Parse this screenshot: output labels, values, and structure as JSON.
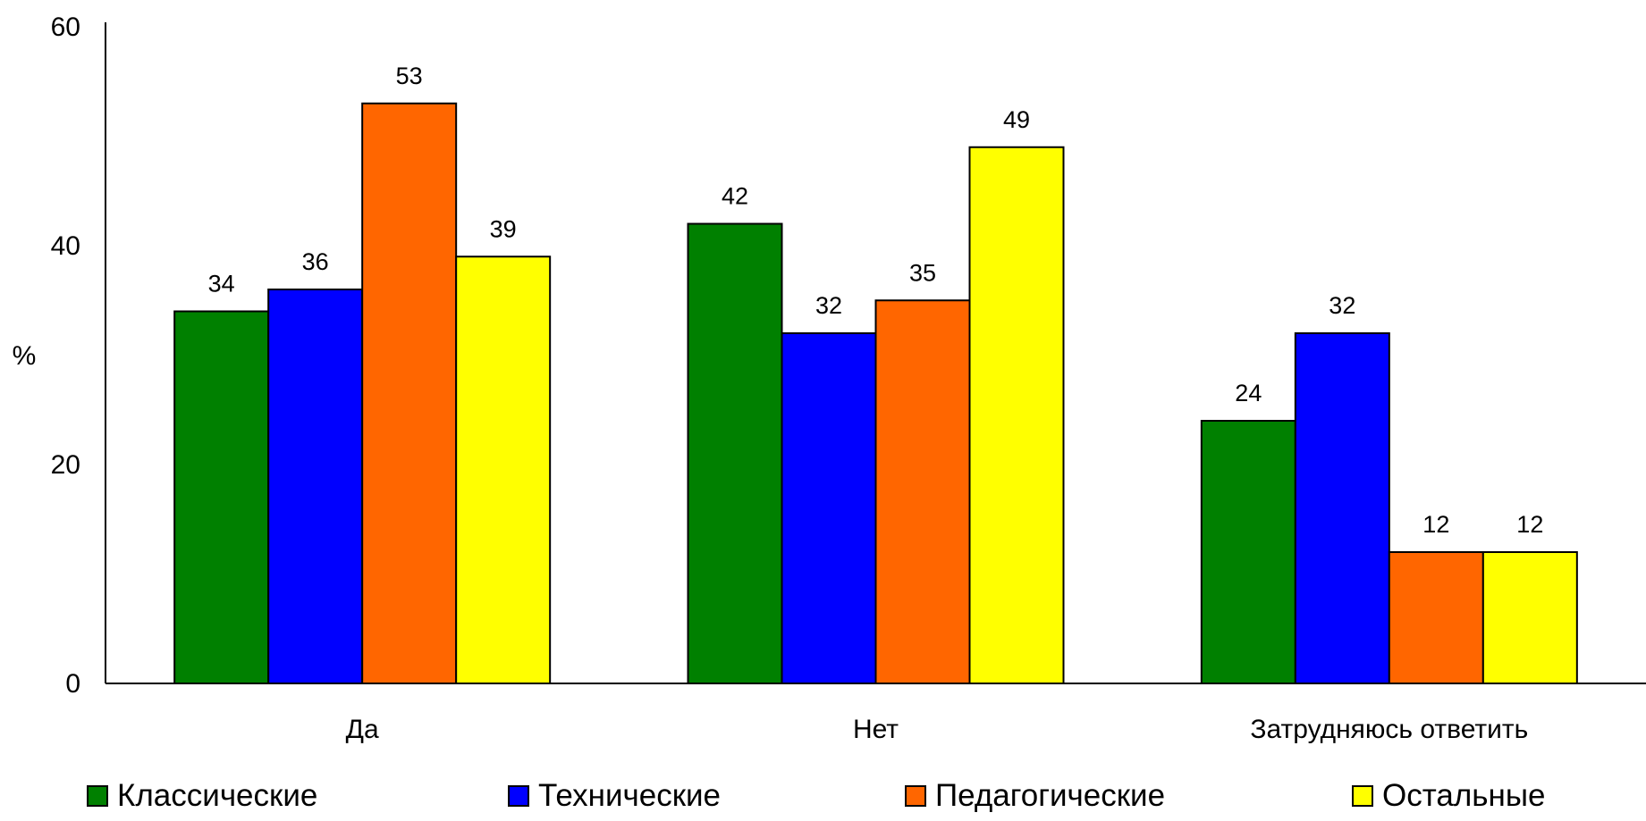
{
  "chart_data": {
    "type": "bar",
    "categories": [
      "Да",
      "Нет",
      "Затрудняюсь ответить"
    ],
    "series": [
      {
        "name": "Классические",
        "color": "#008000",
        "values": [
          34,
          42,
          24
        ]
      },
      {
        "name": "Технические",
        "color": "#0000ff",
        "values": [
          36,
          32,
          32
        ]
      },
      {
        "name": "Педагогические",
        "color": "#ff6600",
        "values": [
          53,
          35,
          12
        ]
      },
      {
        "name": "Остальные",
        "color": "#ffff00",
        "values": [
          39,
          49,
          12
        ]
      }
    ],
    "ylabel": "%",
    "xlabel": "",
    "ylim": [
      0,
      60
    ],
    "yticks": [
      0,
      20,
      40,
      60
    ],
    "grid": false,
    "legend_position": "bottom"
  }
}
